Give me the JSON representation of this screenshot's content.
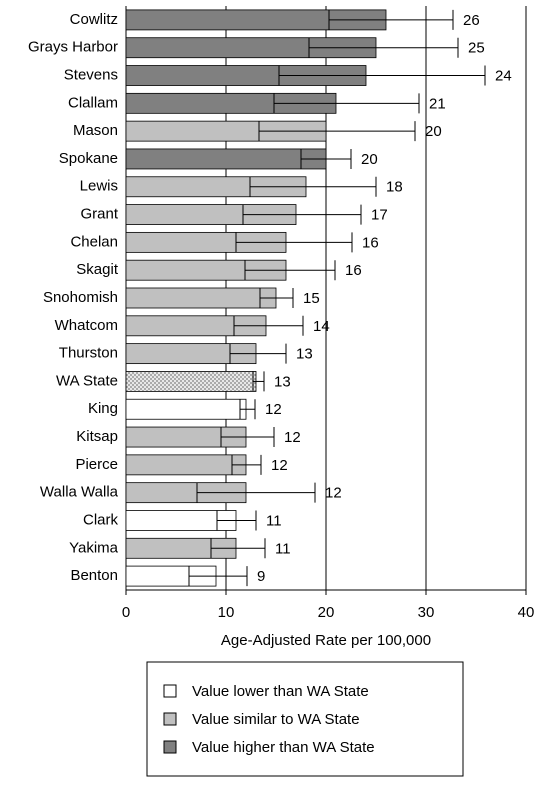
{
  "chart_data": {
    "type": "bar",
    "orientation": "horizontal",
    "categories": [
      "Cowlitz",
      "Grays Harbor",
      "Stevens",
      "Clallam",
      "Mason",
      "Spokane",
      "Lewis",
      "Grant",
      "Chelan",
      "Skagit",
      "Snohomish",
      "Whatcom",
      "Thurston",
      "WA State",
      "King",
      "Kitsap",
      "Pierce",
      "Walla Walla",
      "Clark",
      "Yakima",
      "Benton"
    ],
    "values": [
      26,
      25,
      24,
      21,
      20,
      20,
      18,
      17,
      16,
      16,
      15,
      14,
      13,
      13,
      12,
      12,
      12,
      12,
      11,
      11,
      9
    ],
    "ci_low": [
      20.3,
      18.3,
      15.3,
      14.8,
      13.3,
      17.5,
      12.4,
      11.7,
      11.0,
      11.9,
      13.4,
      10.8,
      10.4,
      12.7,
      11.4,
      9.5,
      10.6,
      7.1,
      9.1,
      8.5,
      6.3
    ],
    "ci_high": [
      32.7,
      33.2,
      35.9,
      29.3,
      28.9,
      22.5,
      25.0,
      23.5,
      22.6,
      20.9,
      16.7,
      17.7,
      16.0,
      13.8,
      12.9,
      14.8,
      13.5,
      18.9,
      13.0,
      13.9,
      12.1
    ],
    "colors": [
      "#808080",
      "#808080",
      "#808080",
      "#808080",
      "#c0c0c0",
      "#808080",
      "#c0c0c0",
      "#c0c0c0",
      "#c0c0c0",
      "#c0c0c0",
      "#c0c0c0",
      "#c0c0c0",
      "#c0c0c0",
      "#dcdcdc",
      "#ffffff",
      "#c0c0c0",
      "#c0c0c0",
      "#c0c0c0",
      "#ffffff",
      "#c0c0c0",
      "#ffffff"
    ],
    "patterned_index": 13,
    "xlabel": "Age-Adjusted Rate per 100,000",
    "xlim": [
      0,
      40
    ],
    "xticks": [
      0,
      10,
      20,
      30,
      40
    ],
    "grid": true,
    "legend": [
      {
        "label": "Value lower than WA State",
        "color": "#ffffff"
      },
      {
        "label": "Value similar to WA State",
        "color": "#c0c0c0"
      },
      {
        "label": "Value higher than WA State",
        "color": "#808080"
      }
    ]
  }
}
